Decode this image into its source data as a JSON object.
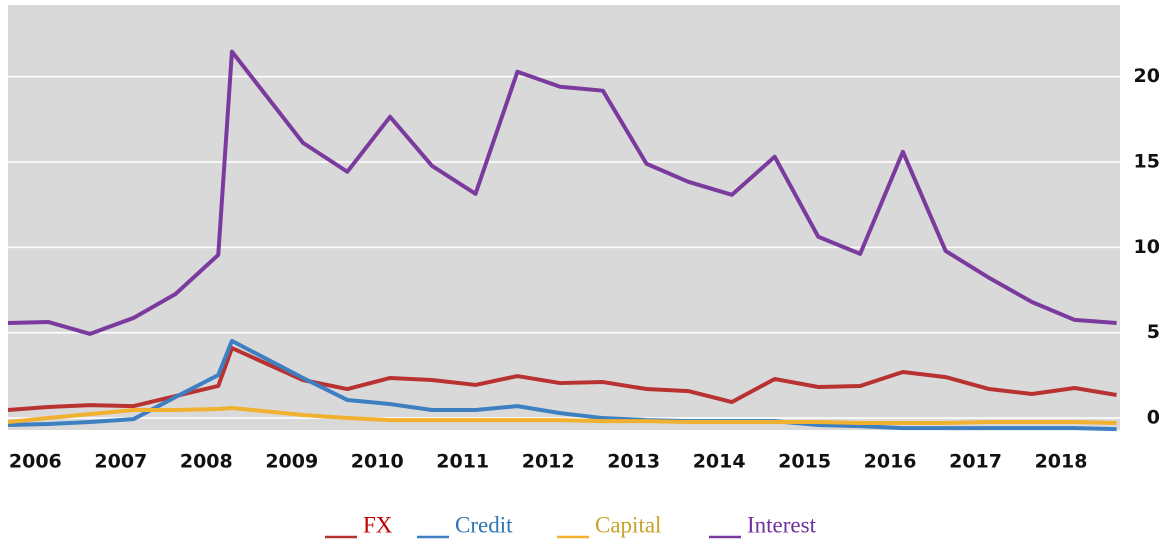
{
  "chart_data": {
    "type": "line",
    "x": [
      2005.68,
      2006.15,
      2006.64,
      2007.15,
      2007.64,
      2008.14,
      2008.3,
      2009.13,
      2009.65,
      2010.15,
      2010.64,
      2011.15,
      2011.64,
      2012.14,
      2012.64,
      2013.15,
      2013.64,
      2014.15,
      2014.65,
      2015.16,
      2015.65,
      2016.15,
      2016.65,
      2017.16,
      2017.66,
      2018.16,
      2018.65
    ],
    "series": [
      {
        "name": "FX",
        "color": "#b83232",
        "label_color": "#c00000",
        "values": [
          0.47,
          0.65,
          0.76,
          0.7,
          1.29,
          1.88,
          4.1,
          2.23,
          1.7,
          2.35,
          2.23,
          1.94,
          2.46,
          2.05,
          2.11,
          1.7,
          1.58,
          0.94,
          2.29,
          1.82,
          1.88,
          2.7,
          2.4,
          1.7,
          1.41,
          1.76,
          1.35
        ]
      },
      {
        "name": "Credit",
        "color": "#3d7fc1",
        "label_color": "#2e75b6",
        "values": [
          -0.41,
          -0.35,
          -0.23,
          -0.06,
          1.23,
          2.52,
          4.52,
          2.35,
          1.06,
          0.82,
          0.47,
          0.47,
          0.7,
          0.29,
          0,
          -0.12,
          -0.18,
          -0.18,
          -0.18,
          -0.41,
          -0.47,
          -0.59,
          -0.59,
          -0.59,
          -0.59,
          -0.59,
          -0.65
        ]
      },
      {
        "name": "Capital",
        "color": "#f0b030",
        "label_color": "#c9a227",
        "values": [
          -0.23,
          0,
          0.23,
          0.47,
          0.47,
          0.53,
          0.59,
          0.18,
          0,
          -0.12,
          -0.12,
          -0.12,
          -0.12,
          -0.12,
          -0.18,
          -0.18,
          -0.23,
          -0.23,
          -0.23,
          -0.23,
          -0.29,
          -0.29,
          -0.29,
          -0.23,
          -0.23,
          -0.23,
          -0.29
        ]
      },
      {
        "name": "Interest",
        "color": "#7b3a9e",
        "label_color": "#7030a0",
        "values": [
          5.57,
          5.63,
          4.93,
          5.87,
          7.27,
          9.56,
          21.47,
          16.13,
          14.43,
          17.65,
          14.78,
          13.14,
          20.29,
          19.41,
          19.18,
          14.9,
          13.84,
          13.08,
          15.31,
          10.62,
          9.62,
          15.6,
          9.79,
          8.21,
          6.8,
          5.75,
          5.57
        ]
      }
    ],
    "xlim": [
      2005.68,
      2018.69
    ],
    "xticks": [
      2006,
      2007,
      2008,
      2009,
      2010,
      2011,
      2012,
      2013,
      2014,
      2015,
      2016,
      2017,
      2018
    ],
    "ylim": [
      -0.7,
      24.2
    ],
    "yticks": [
      0,
      5,
      10,
      15,
      20
    ],
    "grid": true,
    "legend": "bottom"
  }
}
